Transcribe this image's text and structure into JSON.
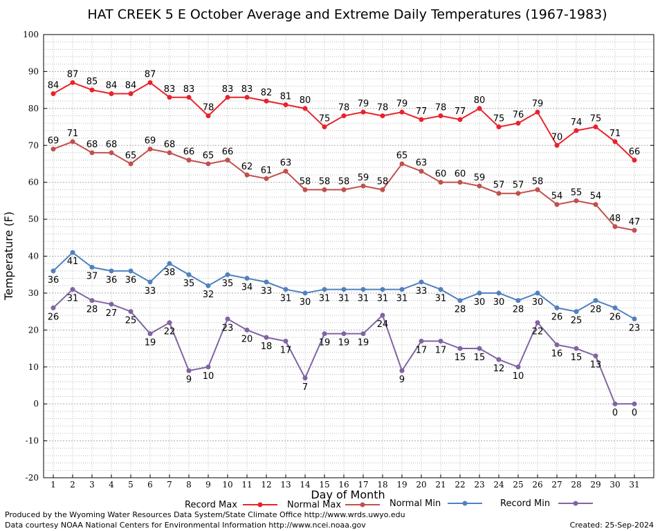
{
  "chart_data": {
    "type": "line",
    "title": "HAT CREEK 5 E October Average and Extreme Daily Temperatures (1967-1983)",
    "xlabel": "Day of Month",
    "ylabel": "Temperature (F)",
    "ylim": [
      -20,
      100
    ],
    "y_ticks": [
      -20,
      -10,
      0,
      10,
      20,
      30,
      40,
      50,
      60,
      70,
      80,
      90,
      100
    ],
    "x": [
      1,
      2,
      3,
      4,
      5,
      6,
      7,
      8,
      9,
      10,
      11,
      12,
      13,
      14,
      15,
      16,
      17,
      18,
      19,
      20,
      21,
      22,
      23,
      24,
      25,
      26,
      27,
      28,
      29,
      30,
      31
    ],
    "grid": true,
    "legend_position": "bottom",
    "series": [
      {
        "name": "Record Max",
        "color": "#e8222a",
        "label_side": "above",
        "values": [
          84,
          87,
          85,
          84,
          84,
          87,
          83,
          83,
          78,
          83,
          83,
          82,
          81,
          80,
          75,
          78,
          79,
          78,
          79,
          77,
          78,
          77,
          80,
          75,
          76,
          79,
          70,
          74,
          75,
          71,
          66
        ]
      },
      {
        "name": "Normal Max",
        "color": "#c0504d",
        "label_side": "above",
        "values": [
          69,
          71,
          68,
          68,
          65,
          69,
          68,
          66,
          65,
          66,
          62,
          61,
          63,
          58,
          58,
          58,
          59,
          58,
          65,
          63,
          60,
          60,
          59,
          57,
          57,
          58,
          54,
          55,
          54,
          48,
          47
        ]
      },
      {
        "name": "Normal Min",
        "color": "#4f81bd",
        "label_side": "below",
        "values": [
          36,
          41,
          37,
          36,
          36,
          33,
          38,
          35,
          32,
          35,
          34,
          33,
          31,
          30,
          31,
          31,
          31,
          31,
          31,
          33,
          31,
          28,
          30,
          30,
          28,
          30,
          26,
          25,
          28,
          26,
          23
        ]
      },
      {
        "name": "Record Min",
        "color": "#8064a2",
        "label_side": "below",
        "values": [
          26,
          31,
          28,
          27,
          25,
          19,
          22,
          9,
          10,
          23,
          20,
          18,
          17,
          7,
          19,
          19,
          19,
          24,
          9,
          17,
          17,
          15,
          15,
          12,
          10,
          22,
          16,
          15,
          13,
          0,
          0
        ]
      }
    ]
  },
  "footer": {
    "line1": "Produced by the Wyoming Water Resources Data System/State Climate Office http://www.wrds.uwyo.edu",
    "line2": "Data courtesy NOAA National Centers for Environmental Information http://www.ncei.noaa.gov",
    "created": "Created:  25-Sep-2024"
  }
}
